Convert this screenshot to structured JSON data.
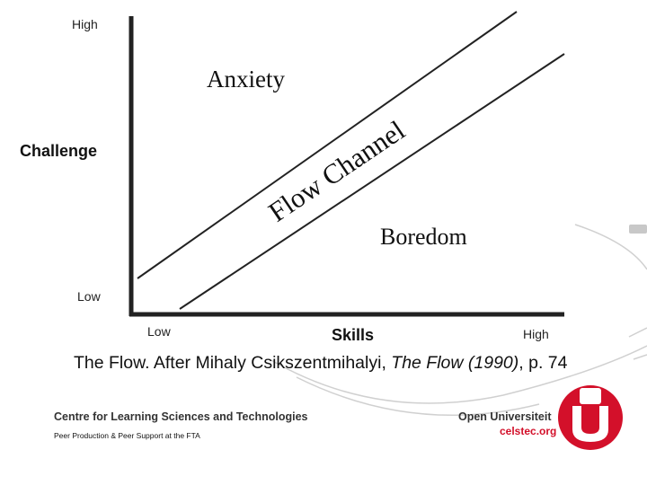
{
  "diagram": {
    "y_axis": {
      "label": "Challenge",
      "high_label": "High",
      "low_label": "Low"
    },
    "x_axis": {
      "label": "Skills",
      "low_label": "Low",
      "high_label": "High"
    },
    "regions": {
      "anxiety": "Anxiety",
      "flow_channel": "Flow Channel",
      "boredom": "Boredom"
    }
  },
  "caption": {
    "prefix": "The Flow.  After Mihaly Csikszentmihalyi, ",
    "title": "The Flow (1990)",
    "suffix": ", p. 74"
  },
  "footer": {
    "centre_name": "Centre for Learning Sciences and Technologies",
    "note": "Peer Production & Peer Support at the FTA",
    "university": "Open Universiteit",
    "website": "celstec.org"
  },
  "colors": {
    "brand_red": "#d3102a",
    "axis": "#222222",
    "decor_gray": "#d0d0d0"
  }
}
